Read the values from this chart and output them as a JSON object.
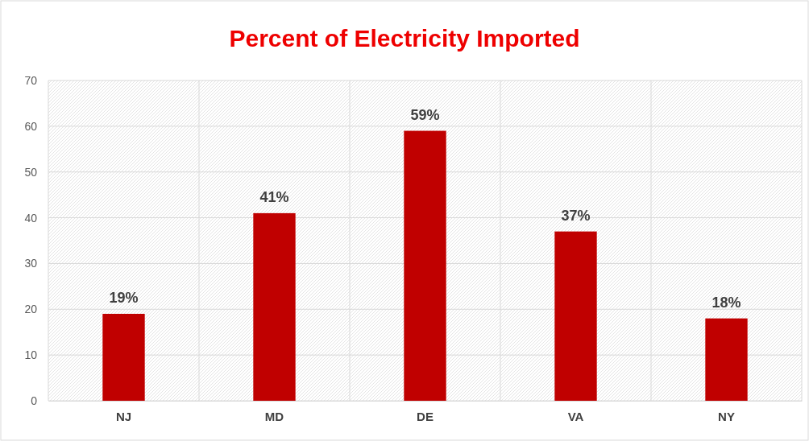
{
  "chart_data": {
    "type": "bar",
    "title": "Percent of Electricity Imported",
    "categories": [
      "NJ",
      "MD",
      "DE",
      "VA",
      "NY"
    ],
    "values": [
      19,
      41,
      59,
      37,
      18
    ],
    "value_labels": [
      "19%",
      "41%",
      "59%",
      "37%",
      "18%"
    ],
    "color": "#c00000",
    "ylim": [
      0,
      70
    ],
    "yticks": [
      0,
      10,
      20,
      30,
      40,
      50,
      60,
      70
    ],
    "grid": true
  }
}
